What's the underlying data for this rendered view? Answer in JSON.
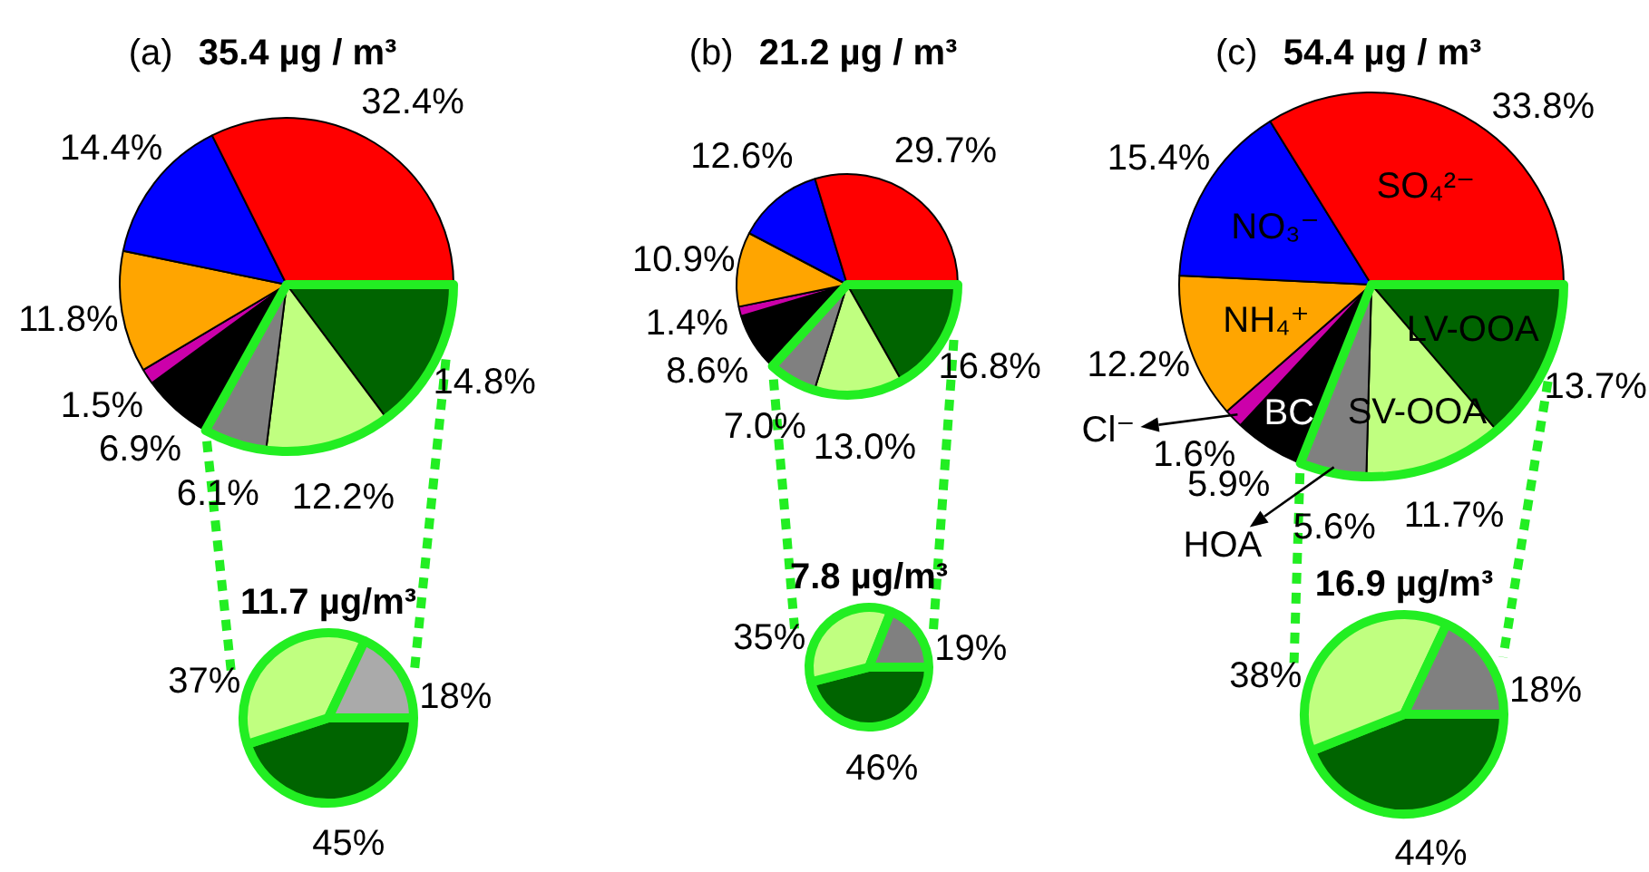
{
  "chart_data": [
    {
      "type": "pie",
      "title": "35.4 µg / m³",
      "annotations": [
        "(a)"
      ],
      "categories": [
        null,
        null,
        null,
        null,
        null,
        null,
        null,
        null
      ],
      "values": [
        14.8,
        12.2,
        6.1,
        6.9,
        1.5,
        11.8,
        14.4,
        32.4
      ],
      "colors": [
        "#006400",
        "#c0ff80",
        "#808080",
        "#000000",
        "#cc00aa",
        "#ffa500",
        "#0000ff",
        "#ff0000"
      ],
      "value_labels": [
        "14.8%",
        "12.2%",
        "6.1%",
        "6.9%",
        "1.5%",
        "11.8%",
        "14.4%",
        "32.4%"
      ]
    },
    {
      "type": "pie",
      "title": "11.7 µg/m³",
      "categories": [
        null,
        null,
        null
      ],
      "values": [
        45,
        37,
        18
      ],
      "colors": [
        "#006400",
        "#c0ff80",
        "#aaaaaa"
      ],
      "value_labels": [
        "45%",
        "37%",
        "18%"
      ]
    },
    {
      "type": "pie",
      "title": "21.2 µg / m³",
      "annotations": [
        "(b)"
      ],
      "categories": [
        null,
        null,
        null,
        null,
        null,
        null,
        null,
        null
      ],
      "values": [
        16.8,
        13.0,
        7.0,
        8.6,
        1.4,
        10.9,
        12.6,
        29.7
      ],
      "colors": [
        "#006400",
        "#c0ff80",
        "#808080",
        "#000000",
        "#cc00aa",
        "#ffa500",
        "#0000ff",
        "#ff0000"
      ],
      "value_labels": [
        "16.8%",
        "13.0%",
        "7.0%",
        "8.6%",
        "1.4%",
        "10.9%",
        "12.6%",
        "29.7%"
      ]
    },
    {
      "type": "pie",
      "title": "7.8 µg/m³",
      "categories": [
        null,
        null,
        null
      ],
      "values": [
        46,
        35,
        19
      ],
      "colors": [
        "#006400",
        "#c0ff80",
        "#808080"
      ],
      "value_labels": [
        "46%",
        "35%",
        "19%"
      ]
    },
    {
      "type": "pie",
      "title": "54.4 µg / m³",
      "annotations": [
        "(c)"
      ],
      "categories": [
        "LV-OOA",
        "SV-OOA",
        "HOA",
        "BC",
        "Cl⁻",
        "NH₄⁺",
        "NO₃⁻",
        "SO₄²⁻"
      ],
      "values": [
        13.7,
        11.7,
        5.6,
        5.9,
        1.6,
        12.2,
        15.4,
        33.8
      ],
      "colors": [
        "#006400",
        "#c0ff80",
        "#808080",
        "#000000",
        "#cc00aa",
        "#ffa500",
        "#0000ff",
        "#ff0000"
      ],
      "value_labels": [
        "13.7%",
        "11.7%",
        "5.6%",
        "5.9%",
        "1.6%",
        "12.2%",
        "15.4%",
        "33.8%"
      ]
    },
    {
      "type": "pie",
      "title": "16.9 µg/m³",
      "categories": [
        null,
        null,
        null
      ],
      "values": [
        44,
        38,
        18
      ],
      "colors": [
        "#006400",
        "#c0ff80",
        "#808080"
      ],
      "value_labels": [
        "44%",
        "38%",
        "18%"
      ]
    }
  ]
}
